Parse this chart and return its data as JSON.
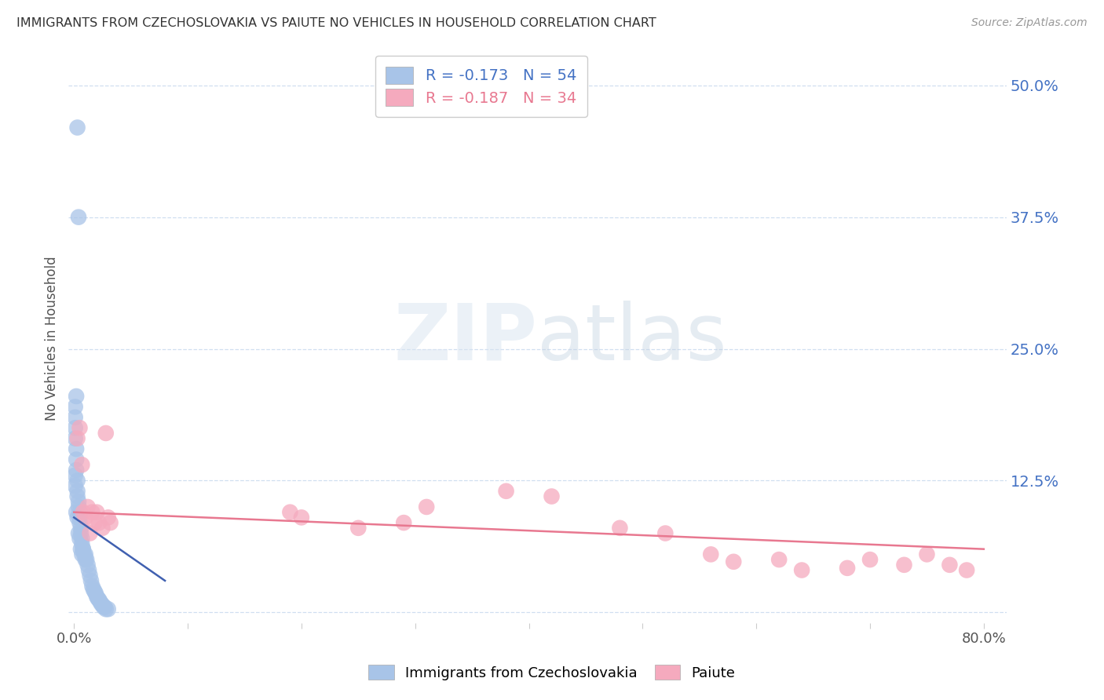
{
  "title": "IMMIGRANTS FROM CZECHOSLOVAKIA VS PAIUTE NO VEHICLES IN HOUSEHOLD CORRELATION CHART",
  "source": "Source: ZipAtlas.com",
  "ylabel": "No Vehicles in Household",
  "xlim": [
    -0.005,
    0.82
  ],
  "ylim": [
    -0.01,
    0.53
  ],
  "yticks": [
    0.0,
    0.125,
    0.25,
    0.375,
    0.5
  ],
  "ytick_labels": [
    "",
    "12.5%",
    "25.0%",
    "37.5%",
    "50.0%"
  ],
  "xticks": [
    0.0,
    0.1,
    0.2,
    0.3,
    0.4,
    0.5,
    0.6,
    0.7,
    0.8
  ],
  "xtick_labels": [
    "0.0%",
    "",
    "",
    "",
    "",
    "",
    "",
    "",
    "80.0%"
  ],
  "blue_color": "#a8c4e8",
  "pink_color": "#f5aabe",
  "blue_line_color": "#4060b0",
  "pink_line_color": "#e87890",
  "R_blue": -0.173,
  "N_blue": 54,
  "R_pink": -0.187,
  "N_pink": 34,
  "legend_label_blue": "Immigrants from Czechoslovakia",
  "legend_label_pink": "Paiute",
  "background_color": "#ffffff",
  "title_color": "#333333",
  "source_color": "#999999",
  "ylabel_color": "#555555",
  "tick_color_y": "#4472c4",
  "tick_color_x": "#555555",
  "grid_color": "#d0dff0",
  "watermark_zip": "#d0dce8",
  "watermark_atlas": "#b8c8d8",
  "blue_x": [
    0.003,
    0.004,
    0.002,
    0.001,
    0.001,
    0.001,
    0.001,
    0.002,
    0.002,
    0.002,
    0.003,
    0.003,
    0.003,
    0.004,
    0.004,
    0.005,
    0.005,
    0.005,
    0.006,
    0.006,
    0.007,
    0.007,
    0.008,
    0.008,
    0.009,
    0.01,
    0.01,
    0.011,
    0.012,
    0.013,
    0.014,
    0.015,
    0.016,
    0.017,
    0.018,
    0.019,
    0.02,
    0.021,
    0.022,
    0.023,
    0.024,
    0.025,
    0.026,
    0.027,
    0.028,
    0.03,
    0.001,
    0.001,
    0.002,
    0.003,
    0.004,
    0.005,
    0.006,
    0.007
  ],
  "blue_y": [
    0.46,
    0.375,
    0.205,
    0.195,
    0.185,
    0.175,
    0.165,
    0.155,
    0.145,
    0.135,
    0.125,
    0.115,
    0.11,
    0.105,
    0.1,
    0.095,
    0.09,
    0.085,
    0.08,
    0.075,
    0.07,
    0.065,
    0.06,
    0.06,
    0.055,
    0.055,
    0.05,
    0.05,
    0.045,
    0.04,
    0.035,
    0.03,
    0.025,
    0.022,
    0.02,
    0.018,
    0.015,
    0.013,
    0.012,
    0.01,
    0.008,
    0.007,
    0.005,
    0.005,
    0.003,
    0.003,
    0.13,
    0.12,
    0.095,
    0.09,
    0.075,
    0.07,
    0.06,
    0.055
  ],
  "pink_x": [
    0.003,
    0.005,
    0.007,
    0.008,
    0.01,
    0.012,
    0.014,
    0.016,
    0.018,
    0.02,
    0.022,
    0.025,
    0.028,
    0.03,
    0.032,
    0.19,
    0.2,
    0.25,
    0.29,
    0.31,
    0.38,
    0.42,
    0.48,
    0.52,
    0.56,
    0.58,
    0.62,
    0.64,
    0.68,
    0.7,
    0.73,
    0.75,
    0.77,
    0.785
  ],
  "pink_y": [
    0.165,
    0.175,
    0.14,
    0.095,
    0.09,
    0.1,
    0.075,
    0.095,
    0.085,
    0.095,
    0.085,
    0.08,
    0.17,
    0.09,
    0.085,
    0.095,
    0.09,
    0.08,
    0.085,
    0.1,
    0.115,
    0.11,
    0.08,
    0.075,
    0.055,
    0.048,
    0.05,
    0.04,
    0.042,
    0.05,
    0.045,
    0.055,
    0.045,
    0.04
  ],
  "blue_trendline_x": [
    0.0,
    0.08
  ],
  "blue_trendline_y": [
    0.09,
    0.03
  ],
  "pink_trendline_x": [
    0.0,
    0.8
  ],
  "pink_trendline_y": [
    0.095,
    0.06
  ]
}
